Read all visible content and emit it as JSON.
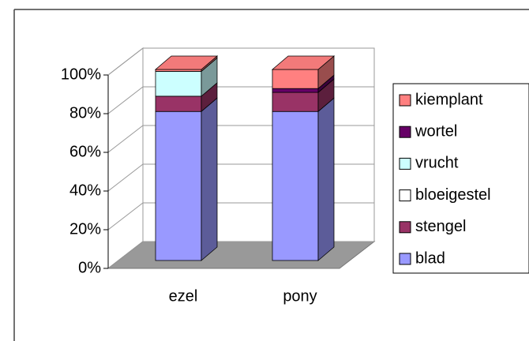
{
  "chart_data": {
    "type": "bar",
    "stacked": true,
    "categories": [
      "ezel",
      "pony"
    ],
    "series": [
      {
        "name": "blad",
        "color": "#9999ff",
        "values": [
          78,
          78
        ]
      },
      {
        "name": "stengel",
        "color": "#993366",
        "values": [
          8,
          10
        ]
      },
      {
        "name": "bloeigestel",
        "color": "#ffffcc",
        "values": [
          0,
          0
        ]
      },
      {
        "name": "vrucht",
        "color": "#ccffff",
        "values": [
          13,
          0
        ]
      },
      {
        "name": "wortel",
        "color": "#660066",
        "values": [
          0,
          2
        ]
      },
      {
        "name": "kiemplant",
        "color": "#ff8080",
        "values": [
          1,
          10
        ]
      }
    ],
    "ylim": [
      0,
      100
    ],
    "yticks": [
      {
        "value": 0,
        "label": "0%"
      },
      {
        "value": 20,
        "label": "20%"
      },
      {
        "value": 40,
        "label": "40%"
      },
      {
        "value": 60,
        "label": "60%"
      },
      {
        "value": 80,
        "label": "80%"
      },
      {
        "value": 100,
        "label": "100%"
      }
    ],
    "grid": true,
    "legend": "right"
  }
}
